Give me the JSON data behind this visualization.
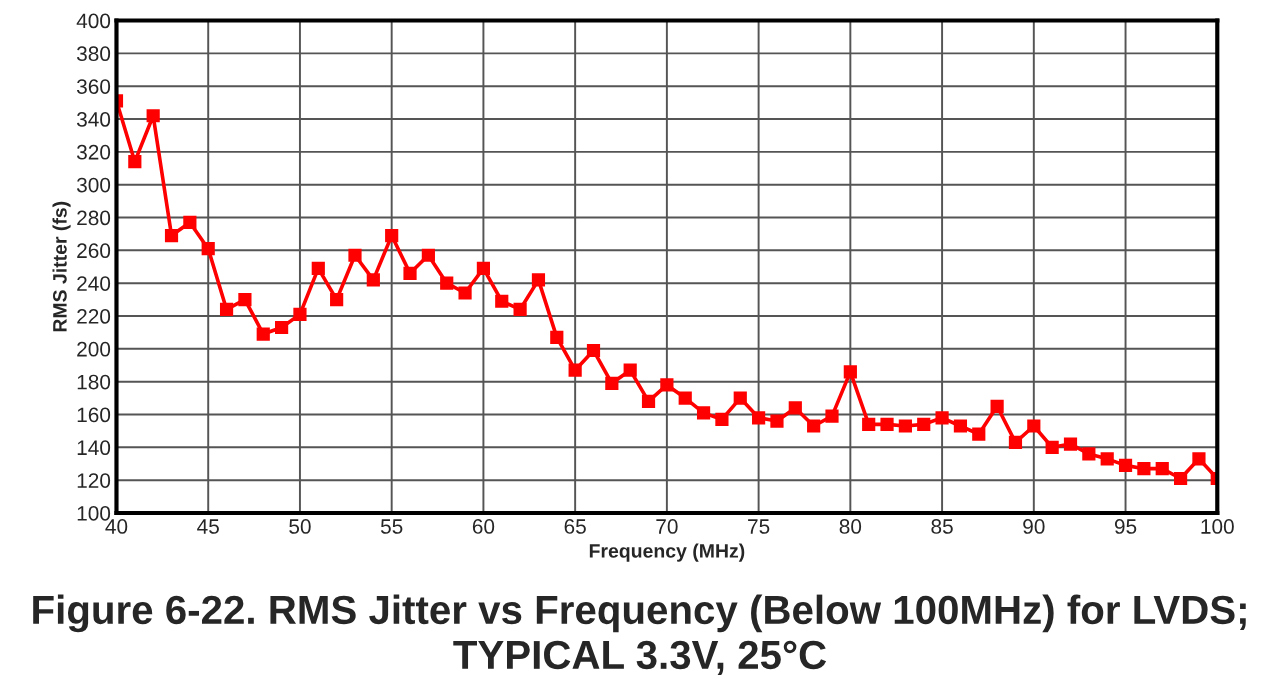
{
  "chart_data": {
    "type": "line",
    "title": "Figure 6-22. RMS Jitter vs Frequency (Below 100MHz) for LVDS;\nTYPICAL 3.3V, 25°C",
    "xlabel": "Frequency (MHz)",
    "ylabel": "RMS Jitter (fs)",
    "x": [
      40,
      41,
      42,
      43,
      44,
      45,
      46,
      47,
      48,
      49,
      50,
      51,
      52,
      53,
      54,
      55,
      56,
      57,
      58,
      59,
      60,
      61,
      62,
      63,
      64,
      65,
      66,
      67,
      68,
      69,
      70,
      71,
      72,
      73,
      74,
      75,
      76,
      77,
      78,
      79,
      80,
      81,
      82,
      83,
      84,
      85,
      86,
      87,
      88,
      89,
      90,
      91,
      92,
      93,
      94,
      95,
      96,
      97,
      98,
      99,
      100
    ],
    "series": [
      {
        "color": "#ff0000",
        "values": [
          351,
          314,
          342,
          269,
          277,
          261,
          224,
          230,
          209,
          213,
          221,
          249,
          230,
          257,
          242,
          269,
          246,
          257,
          240,
          234,
          249,
          229,
          224,
          242,
          207,
          187,
          199,
          179,
          187,
          168,
          178,
          170,
          161,
          157,
          170,
          158,
          156,
          164,
          153,
          159,
          186,
          154,
          154,
          153,
          154,
          158,
          153,
          148,
          165,
          143,
          153,
          140,
          142,
          136,
          133,
          129,
          127,
          127,
          121,
          133,
          121
        ]
      }
    ],
    "xlim": [
      40,
      100
    ],
    "xticks": [
      40,
      45,
      50,
      55,
      60,
      65,
      70,
      75,
      80,
      85,
      90,
      95,
      100
    ],
    "ylim": [
      100,
      400
    ],
    "yticks": [
      100,
      120,
      140,
      160,
      180,
      200,
      220,
      240,
      260,
      280,
      300,
      320,
      340,
      360,
      380,
      400
    ],
    "grid": true,
    "marker": "square",
    "line_style": "solid",
    "legend": false
  }
}
